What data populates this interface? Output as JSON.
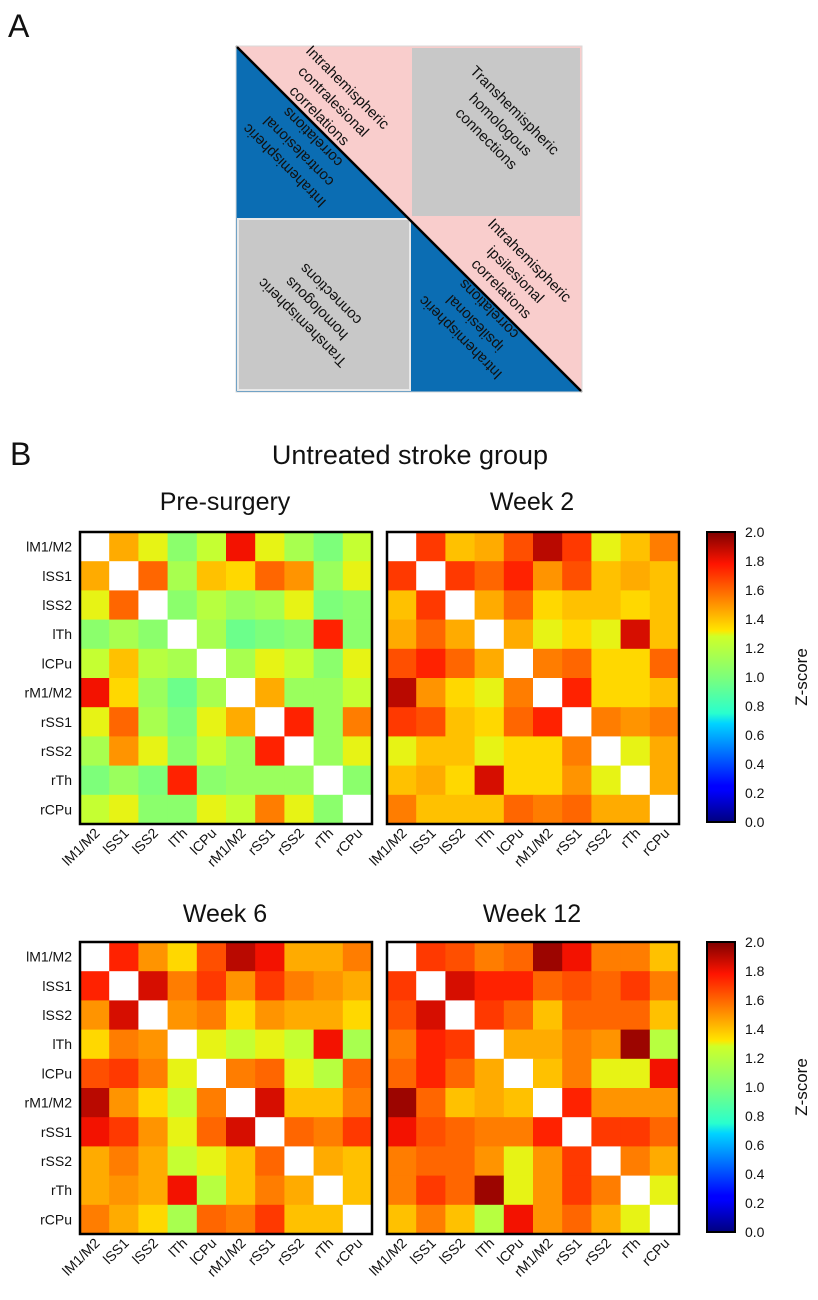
{
  "panel_a": {
    "letter": "A",
    "labels": {
      "upper_left_region": [
        "Intrahemispheric",
        "contralesional",
        "correlations"
      ],
      "lower_left_region_mirrored": [
        "Intrahemispheric",
        "contralesional",
        "correlations"
      ],
      "upper_right_box": [
        "Transhemispheric",
        "homologous",
        "connections"
      ],
      "lower_left_box": [
        "Transhemispheric",
        "homologous",
        "connections"
      ],
      "lower_right_region": [
        "Intrahemispheric",
        "ipsilesional",
        "correlations"
      ],
      "lower_right_region_mirrored": [
        "Intrahemispheric",
        "ipsilesional",
        "correlations"
      ]
    },
    "colors": {
      "pink": "#f9cdcc",
      "blue": "#0b6db3",
      "gray": "#c8c8c8"
    }
  },
  "panel_b": {
    "letter": "B",
    "group_title": "Untreated stroke group"
  },
  "chart_data": [
    {
      "type": "heatmap",
      "title": "Pre-surgery",
      "x_labels": [
        "lM1/M2",
        "lSS1",
        "lSS2",
        "lTh",
        "lCPu",
        "rM1/M2",
        "rSS1",
        "rSS2",
        "rTh",
        "rCPu"
      ],
      "y_labels": [
        "lM1/M2",
        "lSS1",
        "lSS2",
        "lTh",
        "lCPu",
        "rM1/M2",
        "rSS1",
        "rSS2",
        "rTh",
        "rCPu"
      ],
      "values": [
        [
          null,
          1.45,
          1.3,
          1.05,
          1.25,
          1.8,
          1.3,
          1.15,
          1.0,
          1.25
        ],
        [
          1.45,
          null,
          1.6,
          1.15,
          1.4,
          1.35,
          1.6,
          1.5,
          1.1,
          1.3
        ],
        [
          1.3,
          1.6,
          null,
          1.05,
          1.2,
          1.1,
          1.15,
          1.3,
          1.0,
          1.05
        ],
        [
          1.05,
          1.15,
          1.05,
          null,
          1.15,
          0.95,
          1.0,
          1.05,
          1.75,
          1.05
        ],
        [
          1.25,
          1.4,
          1.2,
          1.15,
          null,
          1.15,
          1.3,
          1.25,
          1.05,
          1.3
        ],
        [
          1.8,
          1.35,
          1.1,
          0.95,
          1.15,
          null,
          1.45,
          1.1,
          1.1,
          1.25
        ],
        [
          1.3,
          1.6,
          1.15,
          1.0,
          1.3,
          1.45,
          null,
          1.75,
          1.1,
          1.55
        ],
        [
          1.15,
          1.5,
          1.3,
          1.05,
          1.25,
          1.1,
          1.75,
          null,
          1.1,
          1.3
        ],
        [
          1.0,
          1.1,
          1.0,
          1.75,
          1.05,
          1.1,
          1.1,
          1.1,
          null,
          1.05
        ],
        [
          1.25,
          1.3,
          1.05,
          1.05,
          1.3,
          1.25,
          1.55,
          1.3,
          1.05,
          null
        ]
      ]
    },
    {
      "type": "heatmap",
      "title": "Week 2",
      "x_labels": [
        "lM1/M2",
        "lSS1",
        "lSS2",
        "lTh",
        "lCPu",
        "rM1/M2",
        "rSS1",
        "rSS2",
        "rTh",
        "rCPu"
      ],
      "y_labels": [
        "lM1/M2",
        "lSS1",
        "lSS2",
        "lTh",
        "lCPu",
        "rM1/M2",
        "rSS1",
        "rSS2",
        "rTh",
        "rCPu"
      ],
      "values": [
        [
          null,
          1.7,
          1.4,
          1.45,
          1.65,
          1.9,
          1.7,
          1.3,
          1.4,
          1.55
        ],
        [
          1.7,
          null,
          1.7,
          1.6,
          1.75,
          1.5,
          1.65,
          1.4,
          1.45,
          1.4
        ],
        [
          1.4,
          1.7,
          null,
          1.45,
          1.6,
          1.35,
          1.4,
          1.4,
          1.35,
          1.4
        ],
        [
          1.45,
          1.6,
          1.45,
          null,
          1.45,
          1.3,
          1.35,
          1.3,
          1.85,
          1.4
        ],
        [
          1.65,
          1.75,
          1.6,
          1.45,
          null,
          1.55,
          1.6,
          1.35,
          1.35,
          1.6
        ],
        [
          1.9,
          1.5,
          1.35,
          1.3,
          1.55,
          null,
          1.75,
          1.35,
          1.35,
          1.4
        ],
        [
          1.7,
          1.65,
          1.4,
          1.35,
          1.6,
          1.75,
          null,
          1.55,
          1.5,
          1.55
        ],
        [
          1.3,
          1.4,
          1.4,
          1.3,
          1.35,
          1.35,
          1.55,
          null,
          1.3,
          1.45
        ],
        [
          1.4,
          1.45,
          1.35,
          1.85,
          1.35,
          1.35,
          1.5,
          1.3,
          null,
          1.45
        ],
        [
          1.55,
          1.4,
          1.4,
          1.4,
          1.6,
          1.55,
          1.6,
          1.45,
          1.45,
          null
        ]
      ]
    },
    {
      "type": "heatmap",
      "title": "Week 6",
      "x_labels": [
        "lM1/M2",
        "lSS1",
        "lSS2",
        "lTh",
        "lCPu",
        "rM1/M2",
        "rSS1",
        "rSS2",
        "rTh",
        "rCPu"
      ],
      "y_labels": [
        "lM1/M2",
        "lSS1",
        "lSS2",
        "lTh",
        "lCPu",
        "rM1/M2",
        "rSS1",
        "rSS2",
        "rTh",
        "rCPu"
      ],
      "values": [
        [
          null,
          1.75,
          1.5,
          1.35,
          1.65,
          1.9,
          1.8,
          1.45,
          1.45,
          1.55
        ],
        [
          1.75,
          null,
          1.85,
          1.55,
          1.7,
          1.5,
          1.7,
          1.55,
          1.5,
          1.45
        ],
        [
          1.5,
          1.85,
          null,
          1.5,
          1.55,
          1.35,
          1.5,
          1.45,
          1.45,
          1.35
        ],
        [
          1.35,
          1.55,
          1.5,
          null,
          1.3,
          1.25,
          1.3,
          1.25,
          1.8,
          1.15
        ],
        [
          1.65,
          1.7,
          1.55,
          1.3,
          null,
          1.55,
          1.6,
          1.3,
          1.2,
          1.6
        ],
        [
          1.9,
          1.5,
          1.35,
          1.25,
          1.55,
          null,
          1.85,
          1.4,
          1.4,
          1.55
        ],
        [
          1.8,
          1.7,
          1.5,
          1.3,
          1.6,
          1.85,
          null,
          1.6,
          1.55,
          1.7
        ],
        [
          1.45,
          1.55,
          1.45,
          1.25,
          1.3,
          1.4,
          1.6,
          null,
          1.45,
          1.4
        ],
        [
          1.45,
          1.5,
          1.45,
          1.8,
          1.2,
          1.4,
          1.55,
          1.45,
          null,
          1.4
        ],
        [
          1.55,
          1.45,
          1.35,
          1.15,
          1.6,
          1.55,
          1.7,
          1.4,
          1.4,
          null
        ]
      ]
    },
    {
      "type": "heatmap",
      "title": "Week 12",
      "x_labels": [
        "lM1/M2",
        "lSS1",
        "lSS2",
        "lTh",
        "lCPu",
        "rM1/M2",
        "rSS1",
        "rSS2",
        "rTh",
        "rCPu"
      ],
      "y_labels": [
        "lM1/M2",
        "lSS1",
        "lSS2",
        "lTh",
        "lCPu",
        "rM1/M2",
        "rSS1",
        "rSS2",
        "rTh",
        "rCPu"
      ],
      "values": [
        [
          null,
          1.7,
          1.65,
          1.55,
          1.6,
          1.95,
          1.8,
          1.55,
          1.55,
          1.4
        ],
        [
          1.7,
          null,
          1.85,
          1.75,
          1.75,
          1.6,
          1.65,
          1.6,
          1.7,
          1.55
        ],
        [
          1.65,
          1.85,
          null,
          1.7,
          1.6,
          1.4,
          1.6,
          1.6,
          1.6,
          1.4
        ],
        [
          1.55,
          1.75,
          1.7,
          null,
          1.45,
          1.45,
          1.55,
          1.5,
          1.95,
          1.2
        ],
        [
          1.6,
          1.75,
          1.6,
          1.45,
          null,
          1.4,
          1.55,
          1.3,
          1.3,
          1.8
        ],
        [
          1.95,
          1.6,
          1.4,
          1.45,
          1.4,
          null,
          1.75,
          1.5,
          1.5,
          1.5
        ],
        [
          1.8,
          1.65,
          1.6,
          1.55,
          1.55,
          1.75,
          null,
          1.7,
          1.7,
          1.6
        ],
        [
          1.55,
          1.6,
          1.6,
          1.5,
          1.3,
          1.5,
          1.7,
          null,
          1.55,
          1.45
        ],
        [
          1.55,
          1.7,
          1.6,
          1.95,
          1.3,
          1.5,
          1.7,
          1.55,
          null,
          1.3
        ],
        [
          1.4,
          1.55,
          1.4,
          1.2,
          1.8,
          1.5,
          1.6,
          1.45,
          1.3,
          null
        ]
      ]
    }
  ],
  "colorbar": {
    "label": "Z-score",
    "range": [
      0.0,
      2.0
    ],
    "ticks": [
      "2.0",
      "1.8",
      "1.6",
      "1.4",
      "1.2",
      "1.0",
      "0.8",
      "0.6",
      "0.4",
      "0.2",
      "0.0"
    ],
    "colormap": "jet"
  }
}
